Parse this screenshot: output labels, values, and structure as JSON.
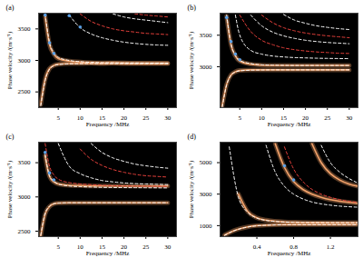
{
  "chart_data": [
    {
      "type": "line",
      "title": "(a)",
      "xlabel": "Frequency /MHz",
      "ylabel": "Phase velocity /(m·s⁻¹)",
      "xlim": [
        0.5,
        32
      ],
      "xticks": [
        5,
        10,
        15,
        20,
        25,
        30
      ],
      "ylim": [
        2250,
        3750
      ],
      "yticks": [
        2500,
        3000,
        3500
      ],
      "x": [
        1,
        2,
        3,
        4,
        5,
        7.5,
        10,
        12.5,
        15,
        17.5,
        20,
        22.5,
        25,
        27.5,
        30
      ],
      "series": [
        {
          "type": "line",
          "color": "#f4a36b",
          "line_style": "solid",
          "values": [
            2300,
            2700,
            2870,
            2920,
            2940,
            2950,
            2950,
            2955,
            2950,
            2955,
            2950,
            2950,
            2950,
            2950,
            2950
          ]
        },
        {
          "type": "line",
          "color": "#f4a36b",
          "line_style": "solid",
          "values": [
            null,
            3700,
            3250,
            3100,
            3030,
            2990,
            2975,
            2965,
            2960,
            2960,
            2960,
            2955,
            2955,
            2955,
            2955
          ]
        },
        {
          "type": "line",
          "color": "#ffffff",
          "line_style": "dashed",
          "values": [
            2280,
            2680,
            2860,
            2915,
            2935,
            2945,
            2948,
            2950,
            2950,
            2950,
            2950,
            2950,
            2950,
            2950,
            2950
          ]
        },
        {
          "type": "line",
          "color": "#ffffff",
          "line_style": "dashed",
          "values": [
            null,
            3740,
            3290,
            3120,
            3050,
            3000,
            2980,
            2970,
            2965,
            2962,
            2960,
            2960,
            2958,
            2958,
            2957
          ]
        },
        {
          "type": "line",
          "color": "#ffffff",
          "line_style": "dashed",
          "values": [
            null,
            null,
            null,
            null,
            null,
            3720,
            3520,
            3420,
            3360,
            3320,
            3290,
            3270,
            3255,
            3245,
            3240
          ]
        },
        {
          "type": "line",
          "color": "#e8413c",
          "line_style": "dashed",
          "values": [
            null,
            null,
            null,
            null,
            null,
            null,
            3740,
            3620,
            3550,
            3500,
            3470,
            3450,
            3430,
            3420,
            3410
          ]
        },
        {
          "type": "line",
          "color": "#ffffff",
          "line_style": "dashed",
          "values": [
            null,
            null,
            null,
            null,
            null,
            null,
            null,
            null,
            null,
            3740,
            3690,
            3660,
            3640,
            3620,
            3600
          ]
        },
        {
          "type": "line",
          "color": "#e8413c",
          "line_style": "dashed",
          "values": [
            null,
            null,
            null,
            null,
            null,
            null,
            null,
            null,
            null,
            null,
            null,
            3740,
            3720,
            3705,
            3690
          ]
        },
        {
          "type": "scatter",
          "color": "#5aa0e6",
          "marker": "dot",
          "values": [
            null,
            3720,
            3280,
            3110,
            null,
            3710,
            3530,
            null,
            null,
            null,
            null,
            null,
            null,
            null,
            null
          ]
        }
      ]
    },
    {
      "type": "line",
      "title": "(b)",
      "xlabel": "Frequency /MHz",
      "ylabel": "Phase velocity /(m·s⁻¹)",
      "xlim": [
        0.5,
        32
      ],
      "xticks": [
        5,
        10,
        15,
        20,
        25,
        30
      ],
      "ylim": [
        2350,
        3850
      ],
      "yticks": [
        3000,
        3500
      ],
      "x": [
        1,
        2,
        3,
        4,
        5,
        7.5,
        10,
        12.5,
        15,
        17.5,
        20,
        22.5,
        25,
        27.5,
        30
      ],
      "series": [
        {
          "type": "line",
          "color": "#f4a36b",
          "line_style": "solid",
          "values": [
            2380,
            2720,
            2870,
            2920,
            2940,
            2950,
            2950,
            2950,
            2950,
            2950,
            2950,
            2950,
            2950,
            2950,
            2950
          ]
        },
        {
          "type": "line",
          "color": "#f4a36b",
          "line_style": "solid",
          "values": [
            null,
            3800,
            3350,
            3170,
            3090,
            3040,
            3025,
            3020,
            3020,
            3020,
            3020,
            3020,
            3020,
            3020,
            3020
          ]
        },
        {
          "type": "line",
          "color": "#ffffff",
          "line_style": "dashed",
          "values": [
            2360,
            2710,
            2865,
            2915,
            2935,
            2945,
            2948,
            2950,
            2950,
            2950,
            2950,
            2950,
            2950,
            2950,
            2950
          ]
        },
        {
          "type": "line",
          "color": "#ffffff",
          "line_style": "dashed",
          "values": [
            null,
            3820,
            3360,
            3180,
            3100,
            3050,
            3030,
            3025,
            3022,
            3020,
            3020,
            3020,
            3020,
            3020,
            3020
          ]
        },
        {
          "type": "line",
          "color": "#ffffff",
          "line_style": "dashed",
          "values": [
            null,
            null,
            null,
            3820,
            3500,
            3260,
            3200,
            3170,
            3155,
            3145,
            3140,
            3135,
            3132,
            3130,
            3128
          ]
        },
        {
          "type": "line",
          "color": "#e8413c",
          "line_style": "dashed",
          "values": [
            null,
            null,
            null,
            null,
            3820,
            3560,
            3420,
            3350,
            3300,
            3270,
            3250,
            3235,
            3225,
            3215,
            3210
          ]
        },
        {
          "type": "line",
          "color": "#ffffff",
          "line_style": "dashed",
          "values": [
            null,
            null,
            null,
            null,
            null,
            3820,
            3650,
            3550,
            3490,
            3450,
            3420,
            3400,
            3385,
            3375,
            3365
          ]
        },
        {
          "type": "line",
          "color": "#e8413c",
          "line_style": "dashed",
          "values": [
            null,
            null,
            null,
            null,
            null,
            null,
            3820,
            3700,
            3620,
            3570,
            3535,
            3510,
            3490,
            3475,
            3460
          ]
        },
        {
          "type": "line",
          "color": "#ffffff",
          "line_style": "dashed",
          "values": [
            null,
            null,
            null,
            null,
            null,
            null,
            null,
            null,
            3830,
            3740,
            3690,
            3650,
            3625,
            3605,
            3590
          ]
        },
        {
          "type": "scatter",
          "color": "#5aa0e6",
          "marker": "dot",
          "values": [
            null,
            3780,
            3400,
            3200,
            3110,
            null,
            null,
            null,
            null,
            null,
            null,
            null,
            null,
            null,
            null
          ]
        }
      ]
    },
    {
      "type": "line",
      "title": "(c)",
      "xlabel": "Frequency /MHz",
      "ylabel": "Phase velocity /(m·s⁻¹)",
      "xlim": [
        0.5,
        32
      ],
      "xticks": [
        5,
        10,
        15,
        20,
        25,
        30
      ],
      "ylim": [
        2420,
        3800
      ],
      "yticks": [
        2500,
        3000,
        3500
      ],
      "x": [
        1,
        2,
        3,
        4,
        5,
        7.5,
        10,
        12.5,
        15,
        17.5,
        20,
        22.5,
        25,
        27.5,
        30
      ],
      "series": [
        {
          "type": "line",
          "color": "#f4a36b",
          "line_style": "solid",
          "values": [
            2430,
            2750,
            2860,
            2900,
            2910,
            2915,
            2915,
            2915,
            2915,
            2915,
            2915,
            2915,
            2915,
            2915,
            2915
          ]
        },
        {
          "type": "line",
          "color": "#f4a36b",
          "line_style": "solid",
          "values": [
            null,
            3600,
            3300,
            3220,
            3190,
            3170,
            3165,
            3160,
            3160,
            3160,
            3160,
            3160,
            3160,
            3160,
            3160
          ]
        },
        {
          "type": "line",
          "color": "#ffffff",
          "line_style": "dashed",
          "values": [
            2440,
            2760,
            2865,
            2900,
            2910,
            2915,
            2915,
            2915,
            2915,
            2915,
            2915,
            2915,
            2915,
            2915,
            2915
          ]
        },
        {
          "type": "line",
          "color": "#ffffff",
          "line_style": "dashed",
          "values": [
            null,
            3620,
            3310,
            3230,
            3190,
            3160,
            3150,
            3145,
            3140,
            3138,
            3136,
            3135,
            3134,
            3133,
            3132
          ]
        },
        {
          "type": "line",
          "color": "#e8413c",
          "line_style": "dashed",
          "values": [
            null,
            3780,
            3450,
            3320,
            3260,
            3210,
            3190,
            3180,
            3170,
            3165,
            3160,
            3158,
            3156,
            3155,
            3154
          ]
        },
        {
          "type": "line",
          "color": "#ffffff",
          "line_style": "dashed",
          "values": [
            null,
            null,
            null,
            null,
            3780,
            3450,
            3340,
            3280,
            3240,
            3220,
            3205,
            3195,
            3190,
            3185,
            3180
          ]
        },
        {
          "type": "line",
          "color": "#e8413c",
          "line_style": "dashed",
          "values": [
            null,
            null,
            null,
            null,
            null,
            null,
            3700,
            3550,
            3460,
            3400,
            3360,
            3330,
            3310,
            3300,
            3290
          ]
        },
        {
          "type": "line",
          "color": "#ffffff",
          "line_style": "dashed",
          "values": [
            null,
            null,
            null,
            null,
            null,
            null,
            null,
            3780,
            3650,
            3570,
            3520,
            3480,
            3455,
            3435,
            3420
          ]
        },
        {
          "type": "scatter",
          "color": "#5aa0e6",
          "marker": "dot",
          "values": [
            null,
            3650,
            3350,
            3250,
            null,
            null,
            null,
            null,
            null,
            null,
            null,
            null,
            null,
            null,
            null
          ]
        }
      ]
    },
    {
      "type": "line",
      "title": "(d)",
      "xlabel": "Frequency /MHz",
      "ylabel": "Phase velocity /(m·s⁻¹)",
      "xlim": [
        0,
        1.5
      ],
      "xticks": [
        0.4,
        0.8,
        1.2
      ],
      "ylim": [
        300,
        6300
      ],
      "yticks": [
        1000,
        3000,
        5000
      ],
      "x": [
        0.05,
        0.1,
        0.2,
        0.3,
        0.4,
        0.5,
        0.6,
        0.7,
        0.8,
        0.9,
        1.0,
        1.1,
        1.2,
        1.3,
        1.4,
        1.5
      ],
      "series": [
        {
          "type": "line",
          "color": "#f4a36b",
          "line_style": "solid",
          "values": [
            400,
            550,
            780,
            920,
            1000,
            1030,
            1050,
            1060,
            1060,
            1060,
            1060,
            1060,
            1060,
            1060,
            1060,
            1060
          ]
        },
        {
          "type": "line",
          "color": "#f4a36b",
          "line_style": "solid",
          "values": [
            null,
            null,
            3000,
            1900,
            1500,
            1350,
            1280,
            1240,
            1220,
            1210,
            1200,
            1200,
            1195,
            1195,
            1190,
            1190
          ]
        },
        {
          "type": "line",
          "color": "#ffffff",
          "line_style": "dashed",
          "values": [
            380,
            540,
            770,
            910,
            990,
            1025,
            1045,
            1055,
            1060,
            1060,
            1060,
            1060,
            1060,
            1060,
            1060,
            1060
          ]
        },
        {
          "type": "line",
          "color": "#ffffff",
          "line_style": "dashed",
          "values": [
            null,
            6000,
            2800,
            1850,
            1480,
            1330,
            1270,
            1230,
            1210,
            1200,
            1195,
            1190,
            1190,
            1188,
            1186,
            1185
          ]
        },
        {
          "type": "line",
          "color": "#f4a36b",
          "line_style": "solid",
          "values": [
            null,
            null,
            null,
            null,
            null,
            null,
            6200,
            4700,
            3800,
            3300,
            3000,
            2800,
            2650,
            2550,
            2480,
            2420
          ]
        },
        {
          "type": "line",
          "color": "#ffffff",
          "line_style": "dashed",
          "values": [
            null,
            null,
            null,
            null,
            null,
            6100,
            4400,
            3500,
            3000,
            2700,
            2500,
            2380,
            2300,
            2240,
            2200,
            2170
          ]
        },
        {
          "type": "line",
          "color": "#e8413c",
          "line_style": "dashed",
          "values": [
            null,
            null,
            null,
            null,
            null,
            null,
            null,
            6000,
            4600,
            3800,
            3300,
            3000,
            2800,
            2650,
            2550,
            2480
          ]
        },
        {
          "type": "line",
          "color": "#f4a36b",
          "line_style": "solid",
          "values": [
            null,
            null,
            null,
            null,
            null,
            null,
            null,
            null,
            null,
            null,
            6200,
            5000,
            4300,
            3900,
            3650,
            3500
          ]
        },
        {
          "type": "line",
          "color": "#ffffff",
          "line_style": "dashed",
          "values": [
            null,
            null,
            null,
            null,
            null,
            null,
            null,
            null,
            null,
            null,
            null,
            6100,
            5000,
            4400,
            4000,
            3700
          ]
        },
        {
          "type": "scatter",
          "color": "#5aa0e6",
          "marker": "dot",
          "values": [
            null,
            null,
            null,
            null,
            null,
            null,
            null,
            4800,
            3900,
            null,
            null,
            null,
            null,
            null,
            null,
            null
          ]
        }
      ]
    }
  ]
}
